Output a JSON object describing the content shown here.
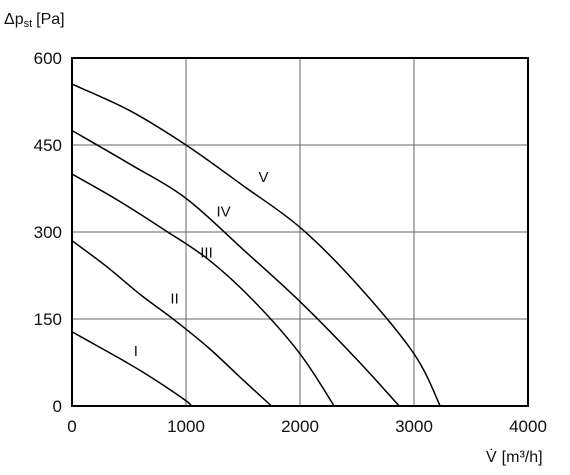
{
  "chart_data": {
    "type": "line",
    "title": "",
    "ylabel": "Δp",
    "ylabel_subscript": "st",
    "ylabel_unit": "[Pa]",
    "xlabel": "V̇",
    "xlabel_unit": "[m³/h]",
    "xlim": [
      0,
      4000
    ],
    "ylim": [
      0,
      600
    ],
    "grid": true,
    "x_ticks": [
      0,
      1000,
      2000,
      3000,
      4000
    ],
    "y_ticks": [
      0,
      150,
      300,
      450,
      600
    ],
    "x_tick_labels": [
      "0",
      "1000",
      "2000",
      "3000",
      "4000"
    ],
    "y_tick_labels": [
      "0",
      "150",
      "300",
      "450",
      "600"
    ],
    "series": [
      {
        "name": "I",
        "x": [
          0,
          200,
          400,
          600,
          800,
          1000,
          1050
        ],
        "y": [
          128,
          106,
          84,
          61,
          36,
          9,
          0
        ],
        "label_pos": [
          560,
          95
        ]
      },
      {
        "name": "II",
        "x": [
          0,
          300,
          600,
          900,
          1200,
          1500,
          1750
        ],
        "y": [
          285,
          241,
          192,
          148,
          100,
          45,
          0
        ],
        "label_pos": [
          900,
          185
        ]
      },
      {
        "name": "III",
        "x": [
          0,
          400,
          800,
          1200,
          1600,
          2000,
          2300
        ],
        "y": [
          400,
          355,
          305,
          252,
          180,
          90,
          0
        ],
        "label_pos": [
          1180,
          265
        ]
      },
      {
        "name": "IV",
        "x": [
          0,
          500,
          1000,
          1500,
          2000,
          2500,
          2870
        ],
        "y": [
          475,
          418,
          358,
          270,
          180,
          80,
          0
        ],
        "label_pos": [
          1330,
          335
        ]
      },
      {
        "name": "V",
        "x": [
          0,
          500,
          1000,
          1500,
          2000,
          2500,
          3000,
          3230
        ],
        "y": [
          555,
          510,
          450,
          380,
          308,
          210,
          90,
          0
        ],
        "label_pos": [
          1680,
          395
        ]
      }
    ]
  }
}
